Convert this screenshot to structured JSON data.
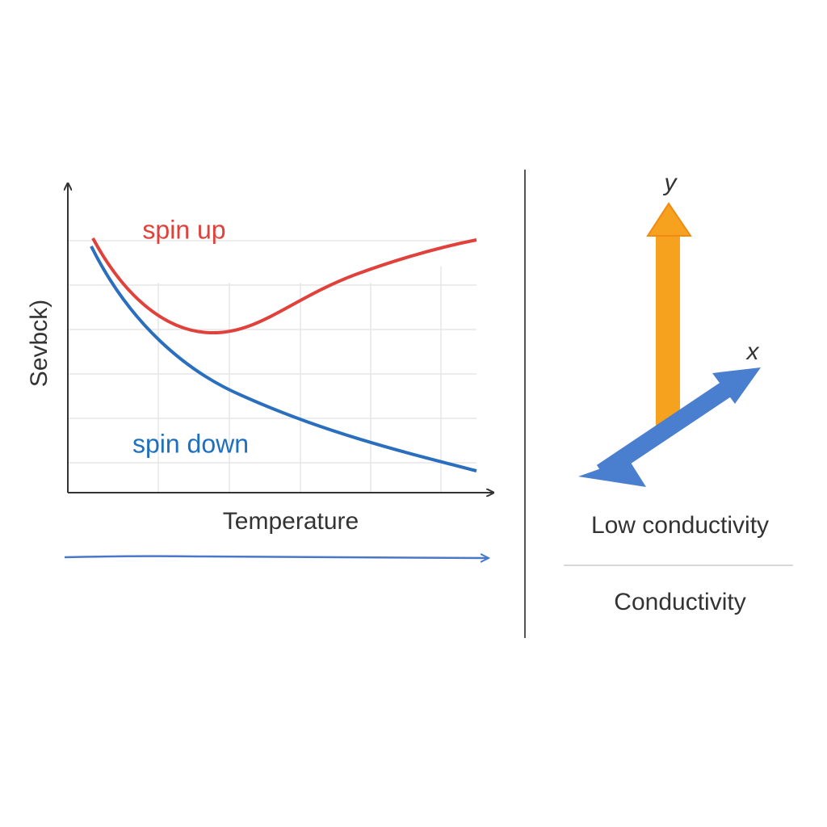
{
  "left_panel": {
    "y_axis_label": "Sevbck)",
    "x_axis_label": "Temperature",
    "curves": [
      {
        "label": "spin up"
      },
      {
        "label": "spin down"
      }
    ]
  },
  "right_panel": {
    "axes": [
      {
        "label": "y"
      },
      {
        "label": "x"
      }
    ],
    "caption": "Low conductivity",
    "footer": "Conductivity"
  }
}
